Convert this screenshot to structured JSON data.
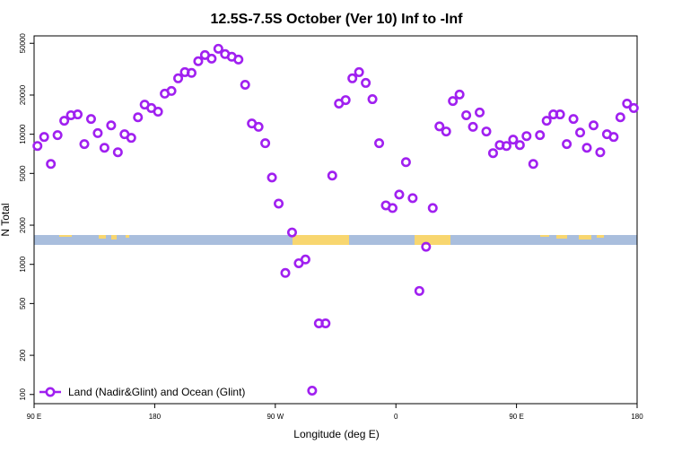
{
  "chart_data": {
    "type": "scatter",
    "title": "12.5S-7.5S October (Ver 10)   Inf to -Inf",
    "xlabel": "Longitude (deg E)",
    "ylabel": "N Total",
    "x": [
      92.5,
      97.5,
      102.5,
      107.5,
      112.5,
      117.5,
      122.5,
      127.5,
      132.5,
      137.5,
      142.5,
      147.5,
      152.5,
      157.5,
      162.5,
      167.5,
      172.5,
      177.5,
      182.5,
      187.5,
      192.5,
      197.5,
      202.5,
      207.5,
      212.5,
      217.5,
      222.5,
      227.5,
      232.5,
      237.5,
      242.5,
      247.5,
      252.5,
      257.5,
      262.5,
      267.5,
      272.5,
      277.5,
      282.5,
      287.5,
      292.5,
      297.5,
      302.5,
      307.5,
      312.5,
      317.5,
      322.5,
      327.5,
      332.5,
      337.5,
      342.5,
      347.5,
      352.5,
      357.5,
      362.5,
      367.5,
      372.5,
      377.5,
      382.5,
      387.5,
      392.5,
      397.5,
      402.5,
      407.5,
      412.5,
      417.5,
      422.5,
      427.5,
      432.5,
      437.5,
      442.5,
      447.5,
      452.5,
      457.5,
      462.5,
      467.5,
      472.5,
      477.5,
      482.5,
      487.5,
      492.5,
      497.5,
      502.5,
      507.5,
      512.5,
      517.5,
      522.5,
      527.5,
      532.5,
      537.5
    ],
    "series": [
      {
        "name": "Land (Nadir&Glint) and Ocean (Glint)",
        "color": "#a020f0",
        "values": [
          8130,
          9530,
          5910,
          9840,
          12700,
          14000,
          14200,
          8400,
          13100,
          10200,
          7870,
          11700,
          7270,
          10000,
          9380,
          13500,
          16900,
          15900,
          14900,
          20500,
          21500,
          26900,
          30000,
          29600,
          36400,
          40600,
          38100,
          45400,
          41300,
          39400,
          37500,
          24000,
          12100,
          11400,
          8530,
          4650,
          2930,
          859,
          1760,
          1020,
          1090,
          107,
          352,
          352,
          4810,
          17200,
          18300,
          26900,
          30000,
          24800,
          18600,
          8530,
          2840,
          2710,
          3440,
          6100,
          3230,
          625,
          1365,
          2710,
          11500,
          10500,
          18000,
          20200,
          14000,
          11400,
          14700,
          10500,
          7160,
          8260,
          8130,
          9090,
          8260,
          9680,
          5910,
          9840,
          12700,
          14200,
          14200,
          8400,
          13100,
          10300,
          7870,
          11700,
          7270,
          10000,
          9530,
          13500,
          17200,
          15900
        ]
      }
    ],
    "xlim": [
      90,
      540
    ],
    "xticks": [
      {
        "value": 90,
        "label": "90 E"
      },
      180,
      {
        "value": 270,
        "label": "90 W"
      },
      {
        "value": 360,
        "label": "0"
      },
      {
        "value": 450,
        "label": "90 E"
      },
      {
        "value": 540,
        "label": "180"
      }
    ],
    "ylim": [
      85,
      57000
    ],
    "yticks": [
      100,
      200,
      500,
      1000,
      2000,
      5000,
      10000,
      20000,
      50000
    ],
    "ylog": true,
    "legend": "bottom-left"
  }
}
